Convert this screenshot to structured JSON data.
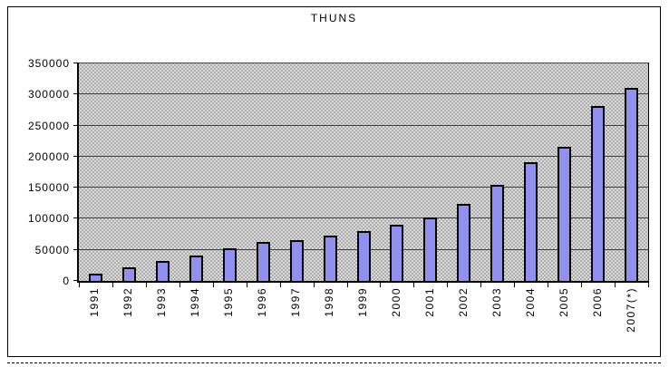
{
  "chart_data": {
    "type": "bar",
    "title": "THUNS",
    "categories": [
      "1991",
      "1992",
      "1993",
      "1994",
      "1995",
      "1996",
      "1997",
      "1998",
      "1999",
      "2000",
      "2001",
      "2002",
      "2003",
      "2004",
      "2005",
      "2006",
      "2007(*)"
    ],
    "values": [
      12000,
      22000,
      32000,
      41000,
      53000,
      62000,
      66000,
      73000,
      80000,
      90000,
      102000,
      124000,
      154000,
      191000,
      216000,
      281000,
      311000
    ],
    "xlabel": "",
    "ylabel": "",
    "ylim": [
      0,
      350000
    ],
    "ytick_step": 50000,
    "ytick_labels": [
      "0",
      "50000",
      "100000",
      "150000",
      "200000",
      "250000",
      "300000",
      "350000"
    ],
    "grid": true,
    "legend_position": "none",
    "x_label_rotation_deg": 90,
    "colors": {
      "bar_fill": "#9090EE",
      "bar_border": "#000000",
      "plot_background": "#DCDCDC",
      "plot_pattern_dot": "#9A9A9A",
      "gridline": "#3F3F3F",
      "axis": "#000000",
      "chart_background": "#FFFFFF",
      "frame_border": "#000000"
    }
  }
}
